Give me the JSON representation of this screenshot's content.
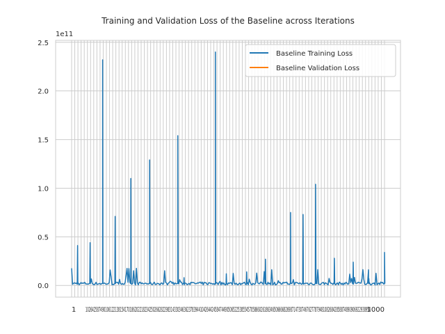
{
  "chart_data": {
    "type": "line",
    "title": "Training and Validation Loss of the Baseline across Iterations",
    "xlabel": "",
    "ylabel": "",
    "y_scale_note": "1e11",
    "ylim": [
      -0.12,
      2.52
    ],
    "y_ticks": [
      0.0,
      0.5,
      1.0,
      1.5,
      2.0,
      2.5
    ],
    "y_tick_labels": [
      "0.0",
      "0.5",
      "1.0",
      "1.5",
      "2.0",
      "2.5"
    ],
    "x_tick_labels": [
      "1",
      "1000"
    ],
    "grid": true,
    "legend_position": "top-right",
    "colors": {
      "training": "#1f77b4",
      "validation": "#ff7f0e",
      "grid": "#cccccc"
    },
    "series": [
      {
        "name": "Baseline Training Loss",
        "x": [
          1,
          20,
          21,
          60,
          61,
          100,
          101,
          140,
          141,
          190,
          191,
          250,
          251,
          340,
          341,
          360,
          361,
          460,
          461,
          495,
          496,
          560,
          561,
          620,
          621,
          700,
          701,
          740,
          741,
          780,
          781,
          840,
          841,
          900,
          901,
          950,
          951,
          1000
        ],
        "values": [
          0.01,
          0.41,
          0.02,
          0.44,
          0.02,
          2.32,
          0.03,
          0.71,
          0.02,
          1.1,
          0.03,
          1.29,
          0.02,
          1.54,
          0.02,
          0.08,
          0.03,
          2.4,
          0.02,
          0.12,
          0.03,
          0.14,
          0.02,
          0.27,
          0.03,
          0.75,
          0.02,
          0.73,
          0.03,
          1.04,
          0.02,
          0.28,
          0.03,
          0.24,
          0.02,
          0.07,
          0.03,
          0.34
        ]
      },
      {
        "name": "Baseline Validation Loss",
        "x": [],
        "values": []
      }
    ]
  }
}
